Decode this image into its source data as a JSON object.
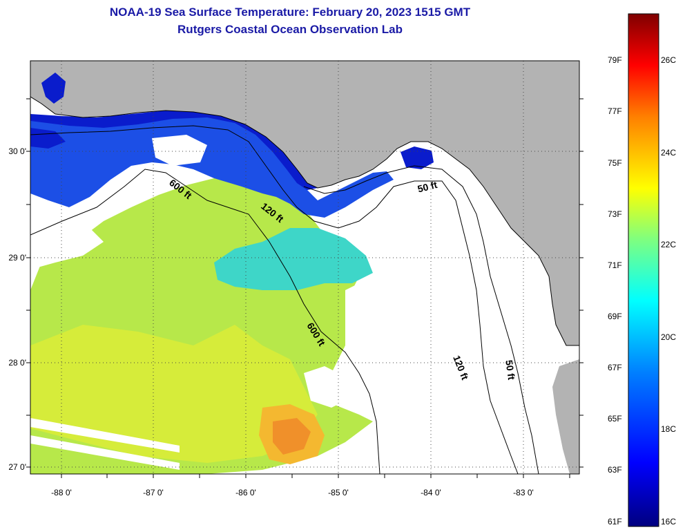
{
  "title": {
    "line1": "NOAA-19 Sea Surface Temperature:  February 20, 2023 1515 GMT",
    "line2": "Rutgers Coastal Ocean Observation Lab"
  },
  "axes": {
    "latitude_labels": [
      "30 0'",
      "29 0'",
      "28 0'",
      "27 0'"
    ],
    "longitude_labels": [
      "-88 0'",
      "-87 0'",
      "-86 0'",
      "-85 0'",
      "-84 0'",
      "-83 0'"
    ]
  },
  "colorbar": {
    "fahrenheit_labels": [
      "79F",
      "77F",
      "75F",
      "73F",
      "71F",
      "69F",
      "67F",
      "65F",
      "63F",
      "61F"
    ],
    "celsius_labels": [
      "26C",
      "24C",
      "22C",
      "20C",
      "18C",
      "16C"
    ],
    "gradient_colors": [
      "#00007f",
      "#0000ff",
      "#007fff",
      "#00ffff",
      "#7fff7f",
      "#ffff00",
      "#ff7f00",
      "#ff0000",
      "#7f0000"
    ]
  },
  "contours": {
    "labels": [
      "600 ft",
      "120 ft",
      "50 ft",
      "600 ft",
      "120 ft",
      "50 ft"
    ]
  },
  "colors": {
    "title": "#1a1aa6",
    "land": "#b3b3b3",
    "cloud": "#ffffff"
  }
}
